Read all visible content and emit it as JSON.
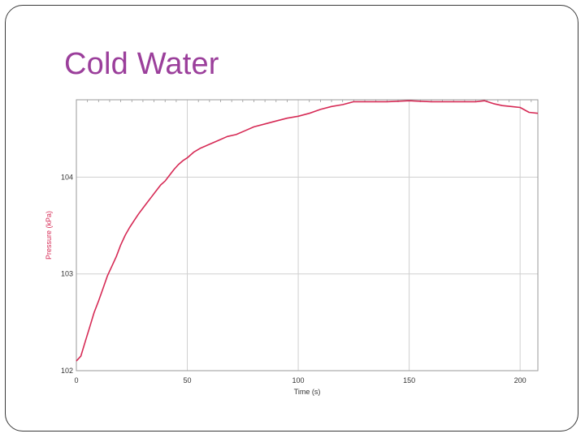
{
  "slide": {
    "title": "Cold Water"
  },
  "chart_data": {
    "type": "line",
    "title": "",
    "xlabel": "Time (s)",
    "ylabel": "Pressure (kPa)",
    "xlim": [
      0,
      208
    ],
    "ylim": [
      102,
      104.8
    ],
    "xticks": [
      0,
      50,
      100,
      150,
      200
    ],
    "yticks": [
      102,
      103,
      104
    ],
    "grid": true,
    "colors": {
      "line": "#d62a55",
      "ylabel": "#d62a55",
      "grid": "#cfcfcf",
      "frame": "#9a9a9a",
      "text": "#333333"
    },
    "series": [
      {
        "name": "Pressure",
        "x": [
          0,
          2,
          4,
          6,
          8,
          10,
          12,
          14,
          16,
          18,
          20,
          22,
          24,
          26,
          28,
          30,
          32,
          34,
          36,
          38,
          40,
          42,
          44,
          46,
          48,
          50,
          53,
          56,
          60,
          64,
          68,
          72,
          76,
          80,
          85,
          90,
          95,
          100,
          105,
          110,
          115,
          120,
          125,
          130,
          140,
          150,
          160,
          170,
          180,
          184,
          188,
          192,
          196,
          200,
          204,
          208
        ],
        "y": [
          102.1,
          102.15,
          102.3,
          102.45,
          102.6,
          102.72,
          102.85,
          102.98,
          103.08,
          103.18,
          103.3,
          103.4,
          103.48,
          103.55,
          103.62,
          103.68,
          103.74,
          103.8,
          103.86,
          103.92,
          103.96,
          104.02,
          104.08,
          104.13,
          104.17,
          104.2,
          104.26,
          104.3,
          104.34,
          104.38,
          104.42,
          104.44,
          104.48,
          104.52,
          104.55,
          104.58,
          104.61,
          104.63,
          104.66,
          104.7,
          104.73,
          104.75,
          104.78,
          104.78,
          104.78,
          104.79,
          104.78,
          104.78,
          104.78,
          104.79,
          104.76,
          104.74,
          104.73,
          104.72,
          104.67,
          104.66
        ]
      }
    ]
  }
}
